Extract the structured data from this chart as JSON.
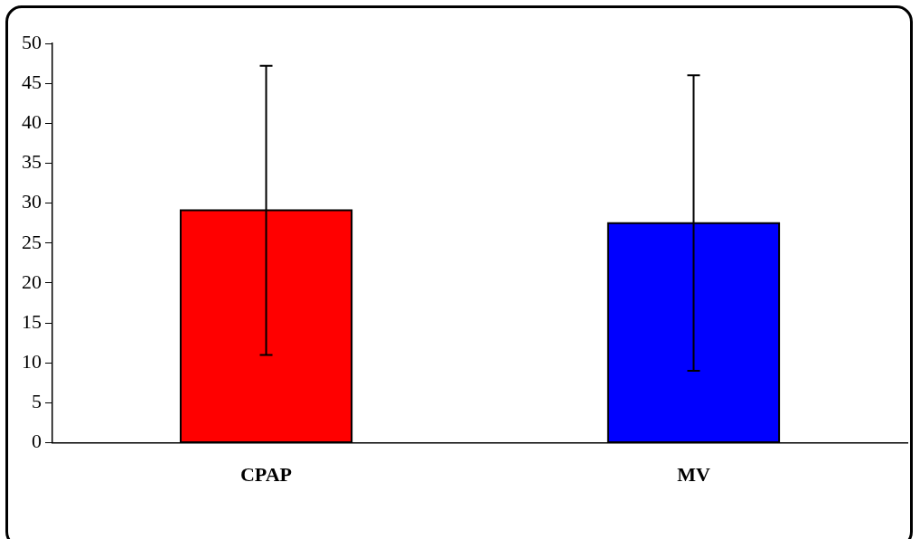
{
  "chart_data": {
    "type": "bar",
    "categories": [
      "CPAP",
      "MV"
    ],
    "values": [
      29.1,
      27.5
    ],
    "colors": [
      "#ff0000",
      "#0000ff"
    ],
    "errors": [
      18.1,
      18.5
    ],
    "ylim": [
      0,
      50
    ],
    "yticks": [
      0,
      5,
      10,
      15,
      20,
      25,
      30,
      35,
      40,
      45,
      50
    ],
    "grid": false,
    "legend": false
  }
}
